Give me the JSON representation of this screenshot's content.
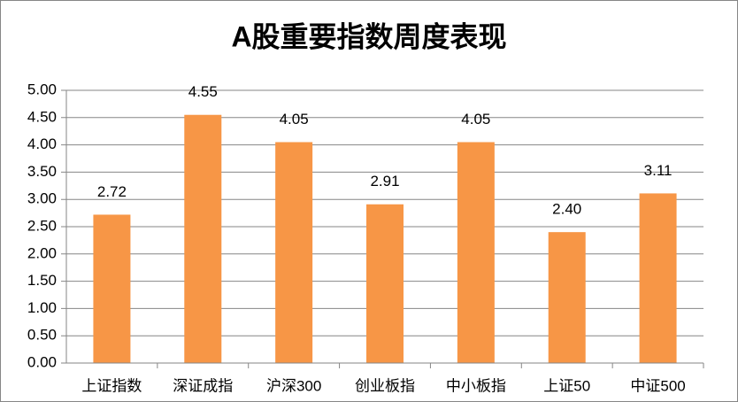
{
  "chart_data": {
    "type": "bar",
    "title": "A股重要指数周度表现",
    "categories": [
      "上证指数",
      "深证成指",
      "沪深300",
      "创业板指",
      "中小板指",
      "上证50",
      "中证500"
    ],
    "values": [
      2.72,
      4.55,
      4.05,
      2.91,
      4.05,
      2.4,
      3.11
    ],
    "value_labels": [
      "2.72",
      "4.55",
      "4.05",
      "2.91",
      "4.05",
      "2.40",
      "3.11"
    ],
    "color": "#f79646",
    "ylim": [
      0,
      5
    ],
    "yticks": [
      {
        "value": 0,
        "label": "0.00"
      },
      {
        "value": 0.5,
        "label": "0.50"
      },
      {
        "value": 1,
        "label": "1.00"
      },
      {
        "value": 1.5,
        "label": "1.50"
      },
      {
        "value": 2,
        "label": "2.00"
      },
      {
        "value": 2.5,
        "label": "2.50"
      },
      {
        "value": 3,
        "label": "3.00"
      },
      {
        "value": 3.5,
        "label": "3.50"
      },
      {
        "value": 4,
        "label": "4.00"
      },
      {
        "value": 4.5,
        "label": "4.50"
      },
      {
        "value": 5,
        "label": "5.00"
      }
    ],
    "grid": true
  }
}
